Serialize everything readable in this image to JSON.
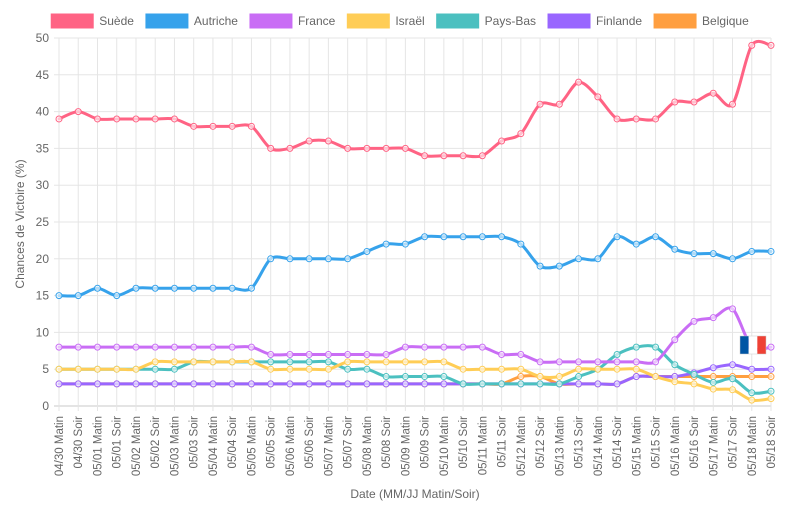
{
  "chart_data": {
    "type": "line",
    "xlabel": "Date (MM/JJ Matin/Soir)",
    "ylabel": "Chances de Victoire (%)",
    "ylim": [
      0,
      50
    ],
    "yticks": [
      0,
      5,
      10,
      15,
      20,
      25,
      30,
      35,
      40,
      45,
      50
    ],
    "grid": true,
    "legend_position": "top",
    "categories": [
      "04/30 Matin",
      "04/30 Soir",
      "05/01 Matin",
      "05/01 Soir",
      "05/02 Matin",
      "05/02 Soir",
      "05/03 Matin",
      "05/03 Soir",
      "05/04 Matin",
      "05/04 Soir",
      "05/05 Matin",
      "05/05 Soir",
      "05/06 Matin",
      "05/06 Soir",
      "05/07 Matin",
      "05/07 Soir",
      "05/08 Matin",
      "05/08 Soir",
      "05/09 Matin",
      "05/09 Soir",
      "05/10 Matin",
      "05/10 Soir",
      "05/11 Matin",
      "05/11 Soir",
      "05/12 Matin",
      "05/12 Soir",
      "05/13 Matin",
      "05/13 Soir",
      "05/14 Matin",
      "05/14 Soir",
      "05/15 Matin",
      "05/15 Soir",
      "05/16 Matin",
      "05/16 Soir",
      "05/17 Matin",
      "05/17 Soir",
      "05/18 Matin",
      "05/18 Soir"
    ],
    "series": [
      {
        "name": "Suède",
        "color": "#ff6384",
        "values": [
          39,
          40,
          39,
          39,
          39,
          39,
          39,
          38,
          38,
          38,
          38,
          35,
          35,
          36,
          36,
          35,
          35,
          35,
          35,
          34,
          34,
          34,
          34,
          36,
          37,
          41,
          41,
          44,
          42,
          39,
          39,
          39,
          41.3,
          41.3,
          42.5,
          41,
          49,
          49
        ]
      },
      {
        "name": "Autriche",
        "color": "#36a2eb",
        "values": [
          15,
          15,
          16,
          15,
          16,
          16,
          16,
          16,
          16,
          16,
          16,
          20,
          20,
          20,
          20,
          20,
          21,
          22,
          22,
          23,
          23,
          23,
          23,
          23,
          22,
          19,
          19,
          20,
          20,
          23,
          22,
          23,
          21.3,
          20.7,
          20.7,
          20,
          21,
          21
        ]
      },
      {
        "name": "France",
        "color": "#c96df5",
        "values": [
          8,
          8,
          8,
          8,
          8,
          8,
          8,
          8,
          8,
          8,
          8,
          7,
          7,
          7,
          7,
          7,
          7,
          7,
          8,
          8,
          8,
          8,
          8,
          7,
          7,
          6,
          6,
          6,
          6,
          6,
          6,
          6,
          9,
          11.5,
          12,
          13.2,
          8,
          8
        ]
      },
      {
        "name": "Israël",
        "color": "#ffcd56",
        "values": [
          5,
          5,
          5,
          5,
          5,
          6,
          6,
          6,
          6,
          6,
          6,
          5,
          5,
          5,
          5,
          6,
          6,
          6,
          6,
          6,
          6,
          5,
          5,
          5,
          5,
          4,
          4,
          5,
          5,
          5,
          5,
          4,
          3.3,
          3,
          2.3,
          2.2,
          0.8,
          1
        ]
      },
      {
        "name": "Pays-Bas",
        "color": "#4bc0c0",
        "values": [
          5,
          5,
          5,
          5,
          5,
          5,
          5,
          6,
          6,
          6,
          6,
          6,
          6,
          6,
          6,
          5,
          5,
          4,
          4,
          4,
          4,
          3,
          3,
          3,
          3,
          3,
          3,
          4,
          5,
          7,
          8,
          8,
          5.6,
          4.3,
          3.2,
          3.7,
          1.8,
          2
        ]
      },
      {
        "name": "Finlande",
        "color": "#9966ff",
        "values": [
          3,
          3,
          3,
          3,
          3,
          3,
          3,
          3,
          3,
          3,
          3,
          3,
          3,
          3,
          3,
          3,
          3,
          3,
          3,
          3,
          3,
          3,
          3,
          3,
          3,
          3,
          3,
          3,
          3,
          3,
          4,
          4,
          4,
          4.5,
          5.2,
          5.6,
          5,
          5
        ]
      },
      {
        "name": "Belgique",
        "color": "#ff9f40",
        "values": [
          3,
          3,
          3,
          3,
          3,
          3,
          3,
          3,
          3,
          3,
          3,
          3,
          3,
          3,
          3,
          3,
          3,
          3,
          3,
          3,
          3,
          3,
          3,
          3,
          4,
          4,
          3,
          3,
          3,
          3,
          4,
          4,
          4,
          4,
          4,
          4,
          4,
          4
        ]
      }
    ]
  },
  "legend": {
    "items": [
      {
        "label": "Suède",
        "color": "#ff6384"
      },
      {
        "label": "Autriche",
        "color": "#36a2eb"
      },
      {
        "label": "France",
        "color": "#c96df5"
      },
      {
        "label": "Israël",
        "color": "#ffcd56"
      },
      {
        "label": "Pays-Bas",
        "color": "#4bc0c0"
      },
      {
        "label": "Finlande",
        "color": "#9966ff"
      },
      {
        "label": "Belgique",
        "color": "#ff9f40"
      }
    ]
  },
  "annotations": {
    "flag_icon": "french-flag-icon",
    "flag_colors": [
      "#0055a4",
      "#ffffff",
      "#ef4135"
    ]
  }
}
